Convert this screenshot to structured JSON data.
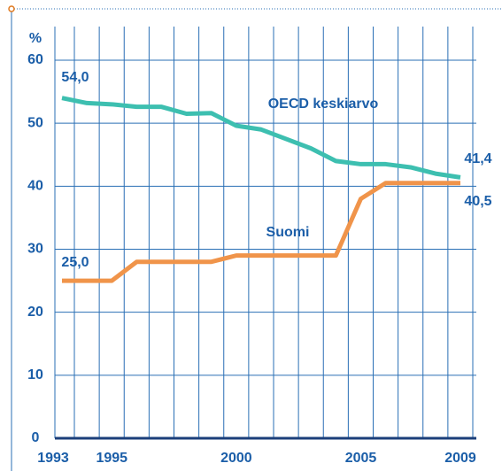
{
  "chart_data": {
    "type": "line",
    "y_label": "%",
    "x": [
      1993,
      1994,
      1995,
      1996,
      1997,
      1998,
      1999,
      2000,
      2001,
      2002,
      2003,
      2004,
      2005,
      2006,
      2007,
      2008,
      2009
    ],
    "xlim": [
      1993,
      2009
    ],
    "xticks": [
      1993,
      1995,
      2000,
      2005,
      2009
    ],
    "ylim": [
      0,
      60
    ],
    "yticks": [
      0,
      10,
      20,
      30,
      40,
      50,
      60
    ],
    "grid": true,
    "series": [
      {
        "name": "OECD keskiarvo",
        "color": "#3dbfb0",
        "values": [
          54.0,
          53.2,
          53.0,
          52.6,
          52.6,
          51.5,
          51.6,
          49.6,
          49.0,
          47.5,
          46.0,
          44.0,
          43.5,
          43.5,
          43.0,
          42.0,
          41.4
        ],
        "value_labels": [
          "54,0",
          null,
          null,
          null,
          null,
          null,
          null,
          null,
          null,
          null,
          null,
          null,
          null,
          null,
          null,
          null,
          "41,4"
        ]
      },
      {
        "name": "Suomi",
        "color": "#f0944a",
        "values": [
          25,
          25,
          25,
          28,
          28,
          28,
          28,
          29,
          29,
          29,
          29,
          29,
          38,
          40.5,
          40.5,
          40.5,
          40.5
        ],
        "value_labels": [
          "25,0",
          null,
          null,
          null,
          null,
          null,
          null,
          null,
          null,
          null,
          null,
          null,
          null,
          null,
          null,
          null,
          "40,5"
        ]
      }
    ]
  }
}
